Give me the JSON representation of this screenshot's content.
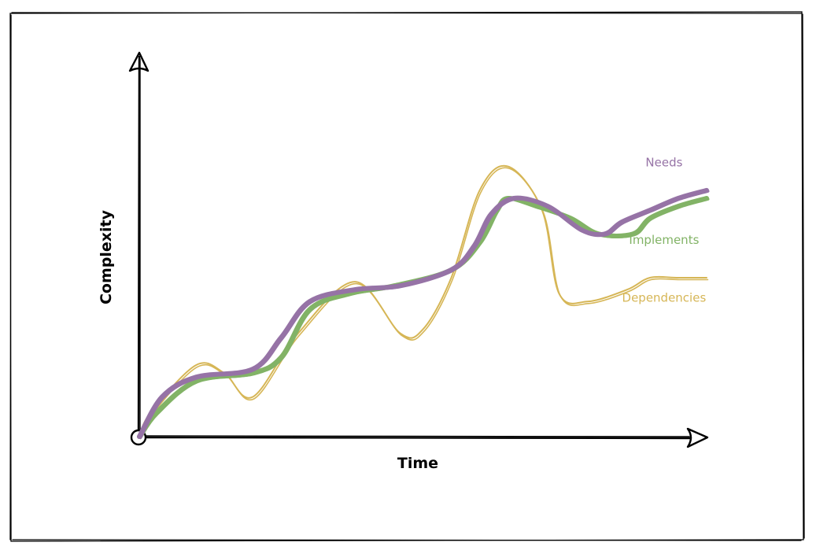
{
  "chart_data": {
    "type": "line",
    "xlabel": "Time",
    "ylabel": "Complexity",
    "grid": false,
    "series": [
      {
        "name": "Dependencies",
        "color": "#d6b656",
        "stroke_width": 2,
        "x": [
          0,
          2,
          10,
          15,
          20,
          28,
          38,
          46,
          50,
          55,
          60,
          65,
          71,
          74,
          79,
          86,
          90,
          95,
          100
        ],
        "y": [
          0,
          6,
          18,
          16,
          10,
          26,
          39,
          26,
          27,
          40,
          62,
          68,
          57,
          36,
          34,
          37,
          40,
          40,
          40
        ]
      },
      {
        "name": "Implements",
        "color": "#82b366",
        "stroke_width": 6,
        "x": [
          0,
          3,
          10,
          20,
          25,
          30,
          37,
          45,
          55,
          60,
          63,
          65,
          70,
          76,
          81,
          87,
          90,
          95,
          100
        ],
        "y": [
          0,
          6,
          14,
          16,
          20,
          32,
          36,
          38,
          42,
          49,
          57,
          60,
          58,
          55,
          51,
          51,
          55,
          58,
          60
        ]
      },
      {
        "name": "Needs",
        "color": "#9673a6",
        "stroke_width": 6,
        "x": [
          0,
          4,
          10,
          20,
          25,
          30,
          38,
          46,
          55,
          59,
          62,
          66,
          72,
          78,
          82,
          85,
          90,
          95,
          100
        ],
        "y": [
          0,
          10,
          15,
          17,
          25,
          34,
          37,
          38,
          42,
          48,
          56,
          60,
          58,
          52,
          51,
          54,
          57,
          60,
          62
        ]
      }
    ],
    "labels": [
      {
        "text": "Needs",
        "series": "Needs",
        "x": 92.5,
        "y": 68
      },
      {
        "text": "Implements",
        "series": "Implements",
        "x": 92.5,
        "y": 48.5
      },
      {
        "text": "Dependencies",
        "series": "Dependencies",
        "x": 92.5,
        "y": 34
      }
    ]
  }
}
